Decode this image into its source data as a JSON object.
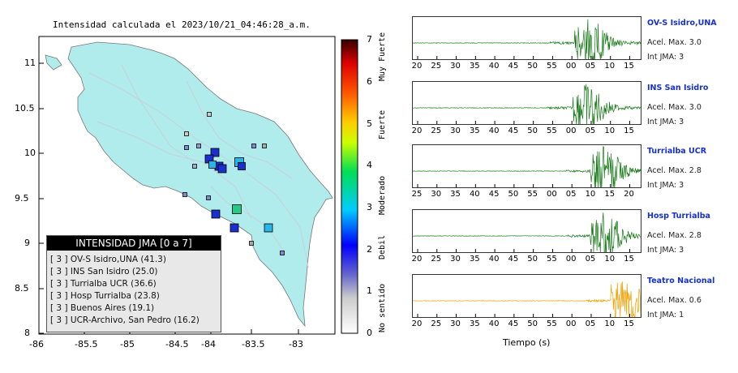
{
  "map": {
    "title": "Intensidad calculada el 2023/10/21_04:46:28_a.m.",
    "x_ticks": [
      "-86",
      "-85.5",
      "-85",
      "-84.5",
      "-84",
      "-83.5",
      "-83"
    ],
    "y_ticks": [
      "11",
      "10.5",
      "10",
      "9.5",
      "9",
      "8.5",
      "8"
    ],
    "colors": {
      "land": "#b0ecec",
      "sea": "#ffffff",
      "roads": "#c8d0d8",
      "border": "#777777"
    }
  },
  "colorbar": {
    "ticks": [
      "0",
      "1",
      "2",
      "3",
      "4",
      "5",
      "6",
      "7"
    ],
    "labels": [
      "No sentido",
      "Debil",
      "Moderado",
      "Fuerte",
      "Muy Fuerte"
    ],
    "colors": [
      "#ffffff",
      "#bbbbbb",
      "#3333cc",
      "#0000ff",
      "#00ccff",
      "#00dd55",
      "#ccff00",
      "#ffcc00",
      "#ff5500",
      "#dd0000",
      "#330000"
    ]
  },
  "legend": {
    "title": "INTENSIDAD JMA [0 a 7]",
    "items": [
      "[ 3 ]  OV-S Isidro,UNA (41.3)",
      "[ 3 ]  INS San Isidro (25.0)",
      "[ 3 ]  Turrialba UCR (36.6)",
      "[ 3 ]  Hosp Turrialba (23.8)",
      "[ 3 ]  Buenos Aires (19.1)",
      "[ 3 ]  UCR-Archivo, San Pedro (16.2)"
    ]
  },
  "stations": [
    {
      "name": "OV-S Isidro,UNA",
      "acel": "Acel. Max. 3.0",
      "jma": "Int JMA: 3",
      "color": "#1a7a1a",
      "ticks": [
        "20",
        "25",
        "30",
        "35",
        "40",
        "45",
        "50",
        "55",
        "00",
        "05",
        "10",
        "15"
      ],
      "tick_values": [
        20,
        25,
        30,
        35,
        40,
        45,
        50,
        55,
        60,
        65,
        70,
        75
      ],
      "onset": 0.71
    },
    {
      "name": "INS San Isidro",
      "acel": "Acel. Max. 3.0",
      "jma": "Int JMA: 3",
      "color": "#1a7a1a",
      "ticks": [
        "20",
        "25",
        "30",
        "35",
        "40",
        "45",
        "50",
        "55",
        "00",
        "05",
        "10",
        "15"
      ],
      "tick_values": [
        20,
        25,
        30,
        35,
        40,
        45,
        50,
        55,
        60,
        65,
        70,
        75
      ],
      "onset": 0.7
    },
    {
      "name": "Turrialba UCR",
      "acel": "Acel. Max. 2.8",
      "jma": "Int JMA: 3",
      "color": "#1a7a1a",
      "ticks": [
        "25",
        "30",
        "35",
        "40",
        "45",
        "50",
        "55",
        "00",
        "05",
        "10",
        "15",
        "20"
      ],
      "tick_values": [
        25,
        30,
        35,
        40,
        45,
        50,
        55,
        60,
        65,
        70,
        75,
        80
      ],
      "onset": 0.78
    },
    {
      "name": "Hosp Turrialba",
      "acel": "Acel. Max. 2.8",
      "jma": "Int JMA: 3",
      "color": "#1a7a1a",
      "ticks": [
        "20",
        "25",
        "30",
        "35",
        "40",
        "45",
        "50",
        "55",
        "00",
        "05",
        "10",
        "15"
      ],
      "tick_values": [
        20,
        25,
        30,
        35,
        40,
        45,
        50,
        55,
        60,
        65,
        70,
        75
      ],
      "onset": 0.78
    },
    {
      "name": "Teatro Nacional",
      "acel": "Acel. Max. 0.6",
      "jma": "Int JMA: 1",
      "color": "#f0a000",
      "ticks": [
        "20",
        "25",
        "30",
        "35",
        "40",
        "45",
        "50",
        "55",
        "00",
        "05",
        "10",
        "15"
      ],
      "tick_values": [
        20,
        25,
        30,
        35,
        40,
        45,
        50,
        55,
        60,
        65,
        70,
        75
      ],
      "onset": 0.87
    }
  ],
  "time_label": "Tiempo (s)"
}
